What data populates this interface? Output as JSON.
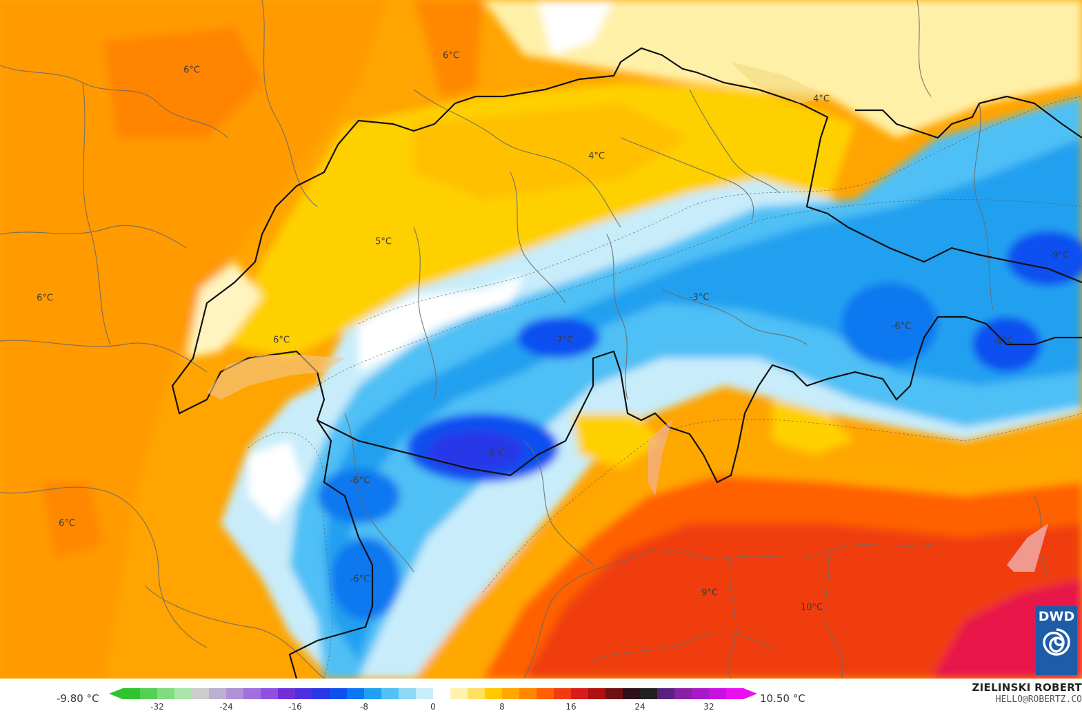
{
  "map": {
    "labels": [
      {
        "text": "6°C"
      },
      {
        "text": "6°C"
      },
      {
        "text": "4°C"
      },
      {
        "text": "4°C"
      },
      {
        "text": "5°C"
      },
      {
        "text": "6°C"
      },
      {
        "text": "6°C"
      },
      {
        "text": "6°C"
      },
      {
        "text": "-3°C"
      },
      {
        "text": "-7°C"
      },
      {
        "text": "-6°C"
      },
      {
        "text": "-8°C"
      },
      {
        "text": "-9°C"
      },
      {
        "text": "-8°C"
      },
      {
        "text": "-6°C"
      },
      {
        "text": "-6°C"
      },
      {
        "text": "9°C"
      },
      {
        "text": "10°C"
      }
    ]
  },
  "legend": {
    "min": "-9.80 °C",
    "max": "10.50 °C",
    "ticks": [
      "-32",
      "-24",
      "-16",
      "-8",
      "0",
      "8",
      "16",
      "24",
      "32"
    ],
    "colors": [
      "#2fc42f",
      "#55d055",
      "#7fdc7f",
      "#a9e6a9",
      "#cccccc",
      "#bbb0d0",
      "#b090d8",
      "#a070e0",
      "#9050e0",
      "#7030d8",
      "#4a30e0",
      "#2838e8",
      "#1050f0",
      "#0a78f0",
      "#20a0f0",
      "#50c0f5",
      "#90d8f8",
      "#c8ecfa",
      "#ffffff",
      "#fff2b0",
      "#ffe060",
      "#ffc800",
      "#ffa800",
      "#ff8800",
      "#ff6000",
      "#f03c10",
      "#d81c1c",
      "#b01010",
      "#701010",
      "#301018",
      "#202020",
      "#5a2080",
      "#8820a8",
      "#a818c8",
      "#c810e0",
      "#e810f0"
    ]
  },
  "credits": {
    "author": "ZIELINSKI ROBERT",
    "email": "HELLO@ROBERTZ.CO",
    "logo_text": "DWD",
    "logo_colors": {
      "background": "#1e5ba8",
      "mark": "#ffffff"
    }
  }
}
